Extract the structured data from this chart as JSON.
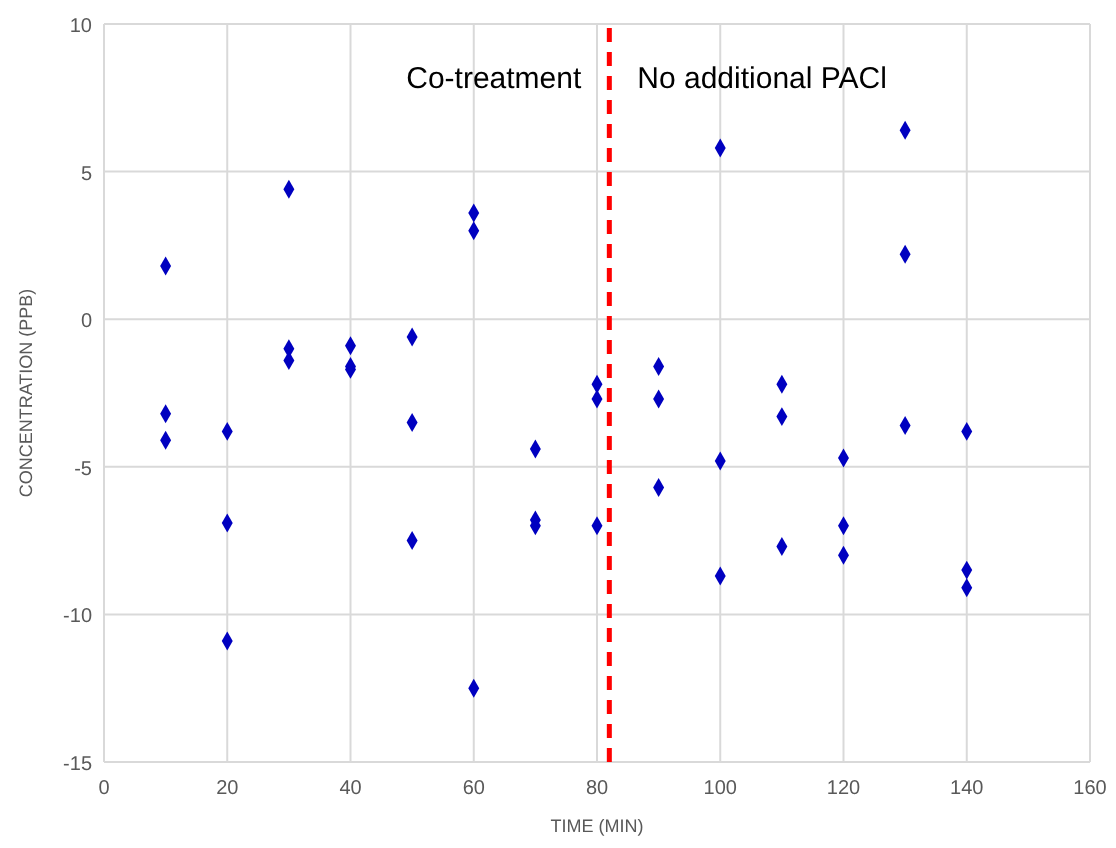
{
  "chart_data": {
    "type": "scatter",
    "xlabel": "TIME (MIN)",
    "ylabel": "CONCENTRATION (PPB)",
    "xlim": [
      0,
      160
    ],
    "xticks": [
      0,
      20,
      40,
      60,
      80,
      100,
      120,
      140,
      160
    ],
    "ylim": [
      -15,
      10
    ],
    "yticks": [
      -15,
      -10,
      -5,
      0,
      5,
      10
    ],
    "grid": true,
    "marker": "diamond",
    "series": [
      {
        "color": "#0000c0",
        "x": [
          10,
          10,
          10,
          20,
          20,
          20,
          30,
          30,
          30,
          40,
          40,
          40,
          50,
          50,
          50,
          60,
          60,
          60,
          70,
          70,
          70,
          80,
          80,
          80,
          90,
          90,
          90,
          100,
          100,
          100,
          110,
          110,
          110,
          120,
          120,
          120,
          130,
          130,
          130,
          140,
          140,
          140
        ],
        "values": [
          1.8,
          -3.2,
          -4.1,
          -3.8,
          -6.9,
          -10.9,
          4.4,
          -1.0,
          -1.4,
          -0.9,
          -1.6,
          -1.7,
          -0.6,
          -3.5,
          -7.5,
          3.6,
          3.0,
          -12.5,
          -4.4,
          -6.8,
          -7.0,
          -2.2,
          -2.7,
          -7.0,
          -1.6,
          -2.7,
          -5.7,
          5.8,
          -4.8,
          -8.7,
          -2.2,
          -3.3,
          -7.7,
          -4.7,
          -7.0,
          -8.0,
          6.4,
          2.2,
          -3.6,
          -3.8,
          -8.5,
          -9.1
        ]
      }
    ],
    "ref_lines": [
      {
        "axis": "x",
        "value": 82,
        "color": "#ff0000",
        "line_style": "dashed"
      }
    ],
    "annotations": [
      "Co-treatment",
      "No additional PACl"
    ]
  }
}
